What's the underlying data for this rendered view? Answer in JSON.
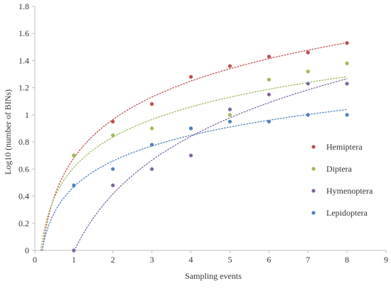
{
  "chart_data": {
    "type": "scatter",
    "title": "",
    "xlabel": "Sampling events",
    "ylabel": "Log10 (number of BINs)",
    "xlim": [
      0,
      9
    ],
    "ylim": [
      0,
      1.8
    ],
    "x_ticks": [
      "0",
      "1",
      "2",
      "3",
      "4",
      "5",
      "6",
      "7",
      "8",
      "9"
    ],
    "y_ticks": [
      "0",
      "0.2",
      "0.4",
      "0.6",
      "0.8",
      "1",
      "1.2",
      "1.4",
      "1.6",
      "1.8"
    ],
    "grid": false,
    "legend_position": "right",
    "trendline": "logarithmic, dotted",
    "x": [
      1,
      2,
      3,
      4,
      5,
      6,
      7,
      8
    ],
    "series": [
      {
        "name": "Hemiptera",
        "color": "#c0504d",
        "values": [
          0.7,
          0.95,
          1.08,
          1.28,
          1.36,
          1.43,
          1.46,
          1.53
        ]
      },
      {
        "name": "Diptera",
        "color": "#9bbb59",
        "values": [
          0.7,
          0.85,
          0.9,
          0.9,
          1.0,
          1.26,
          1.32,
          1.38
        ]
      },
      {
        "name": "Hymenoptera",
        "color": "#8064a2",
        "values": [
          0.0,
          0.48,
          0.6,
          0.7,
          1.04,
          1.15,
          1.23,
          1.23
        ]
      },
      {
        "name": "Lepidoptera",
        "color": "#4f81bd",
        "values": [
          0.48,
          0.6,
          0.78,
          0.9,
          0.95,
          0.95,
          1.0,
          1.0
        ]
      }
    ]
  }
}
